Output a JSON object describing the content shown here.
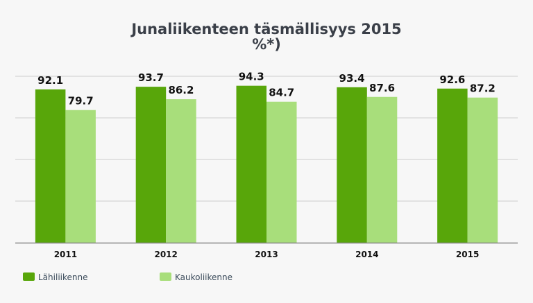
{
  "chart_data": {
    "type": "bar",
    "title_lines": [
      "Junaliikenteen täsmällisyys 2015",
      "%*)"
    ],
    "categories": [
      "2011",
      "2012",
      "2013",
      "2014",
      "2015"
    ],
    "series": [
      {
        "name": "Lähiliikenne",
        "values": [
          92.1,
          93.7,
          94.3,
          93.4,
          92.6
        ],
        "color": "#58a60a"
      },
      {
        "name": "Kaukoliikenne",
        "values": [
          79.7,
          86.2,
          84.7,
          87.6,
          87.2
        ],
        "color": "#a8de7b"
      }
    ],
    "xlabel": "",
    "ylabel": "",
    "ylim": [
      0,
      100
    ],
    "grid": true,
    "y_tick_labels_shown": false,
    "legend_position": "bottom-left",
    "colors": {
      "background": "#f7f7f7",
      "grid": "#cccccc",
      "axis": "#888888",
      "title": "#3a3f48"
    }
  }
}
